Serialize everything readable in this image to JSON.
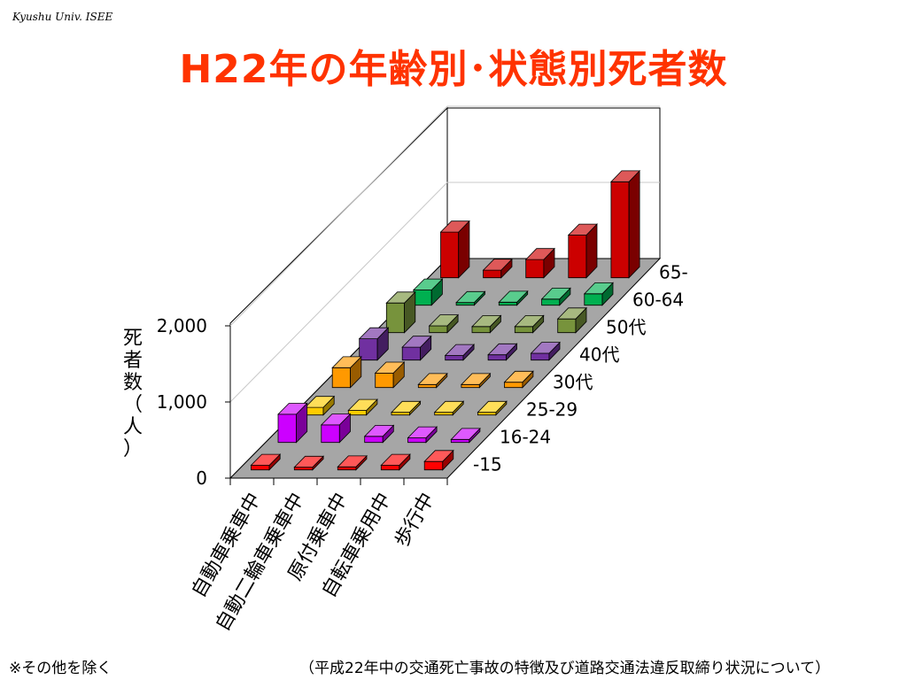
{
  "header": {
    "note": "Kyushu Univ. ISEE"
  },
  "title": "H22年の年齢別･状態別死者数",
  "chart_data": {
    "type": "bar",
    "subtype": "3d-column",
    "title": "H22年の年齢別･状態別死者数",
    "ylabel": "死者数（人）",
    "ylim": [
      0,
      2000
    ],
    "yticks": [
      "0",
      "1,000",
      "2,000"
    ],
    "categories": [
      "自動車乗車中",
      "自動二輪車乗車中",
      "原付乗車中",
      "自転車乗用中",
      "歩行中"
    ],
    "series": [
      {
        "name": "-15",
        "color": "#ff0000",
        "values": [
          60,
          30,
          40,
          60,
          110
        ]
      },
      {
        "name": "16-24",
        "color": "#cc00ff",
        "values": [
          370,
          230,
          80,
          60,
          40
        ]
      },
      {
        "name": "25-29",
        "color": "#ffcc00",
        "values": [
          100,
          60,
          30,
          25,
          25
        ]
      },
      {
        "name": "30代",
        "color": "#ff9900",
        "values": [
          260,
          190,
          40,
          40,
          70
        ]
      },
      {
        "name": "40代",
        "color": "#7030a0",
        "values": [
          280,
          170,
          60,
          70,
          90
        ]
      },
      {
        "name": "50代",
        "color": "#77933c",
        "values": [
          390,
          90,
          80,
          80,
          180
        ]
      },
      {
        "name": "60-64",
        "color": "#00b050",
        "values": [
          200,
          20,
          40,
          80,
          150
        ]
      },
      {
        "name": "65-",
        "color": "#cc0000",
        "values": [
          600,
          100,
          240,
          560,
          1260
        ]
      }
    ],
    "grid": true
  },
  "footer": {
    "left": "※その他を除く",
    "right": "（平成22年中の交通死亡事故の特徴及び道路交通法違反取締り状況について）"
  }
}
